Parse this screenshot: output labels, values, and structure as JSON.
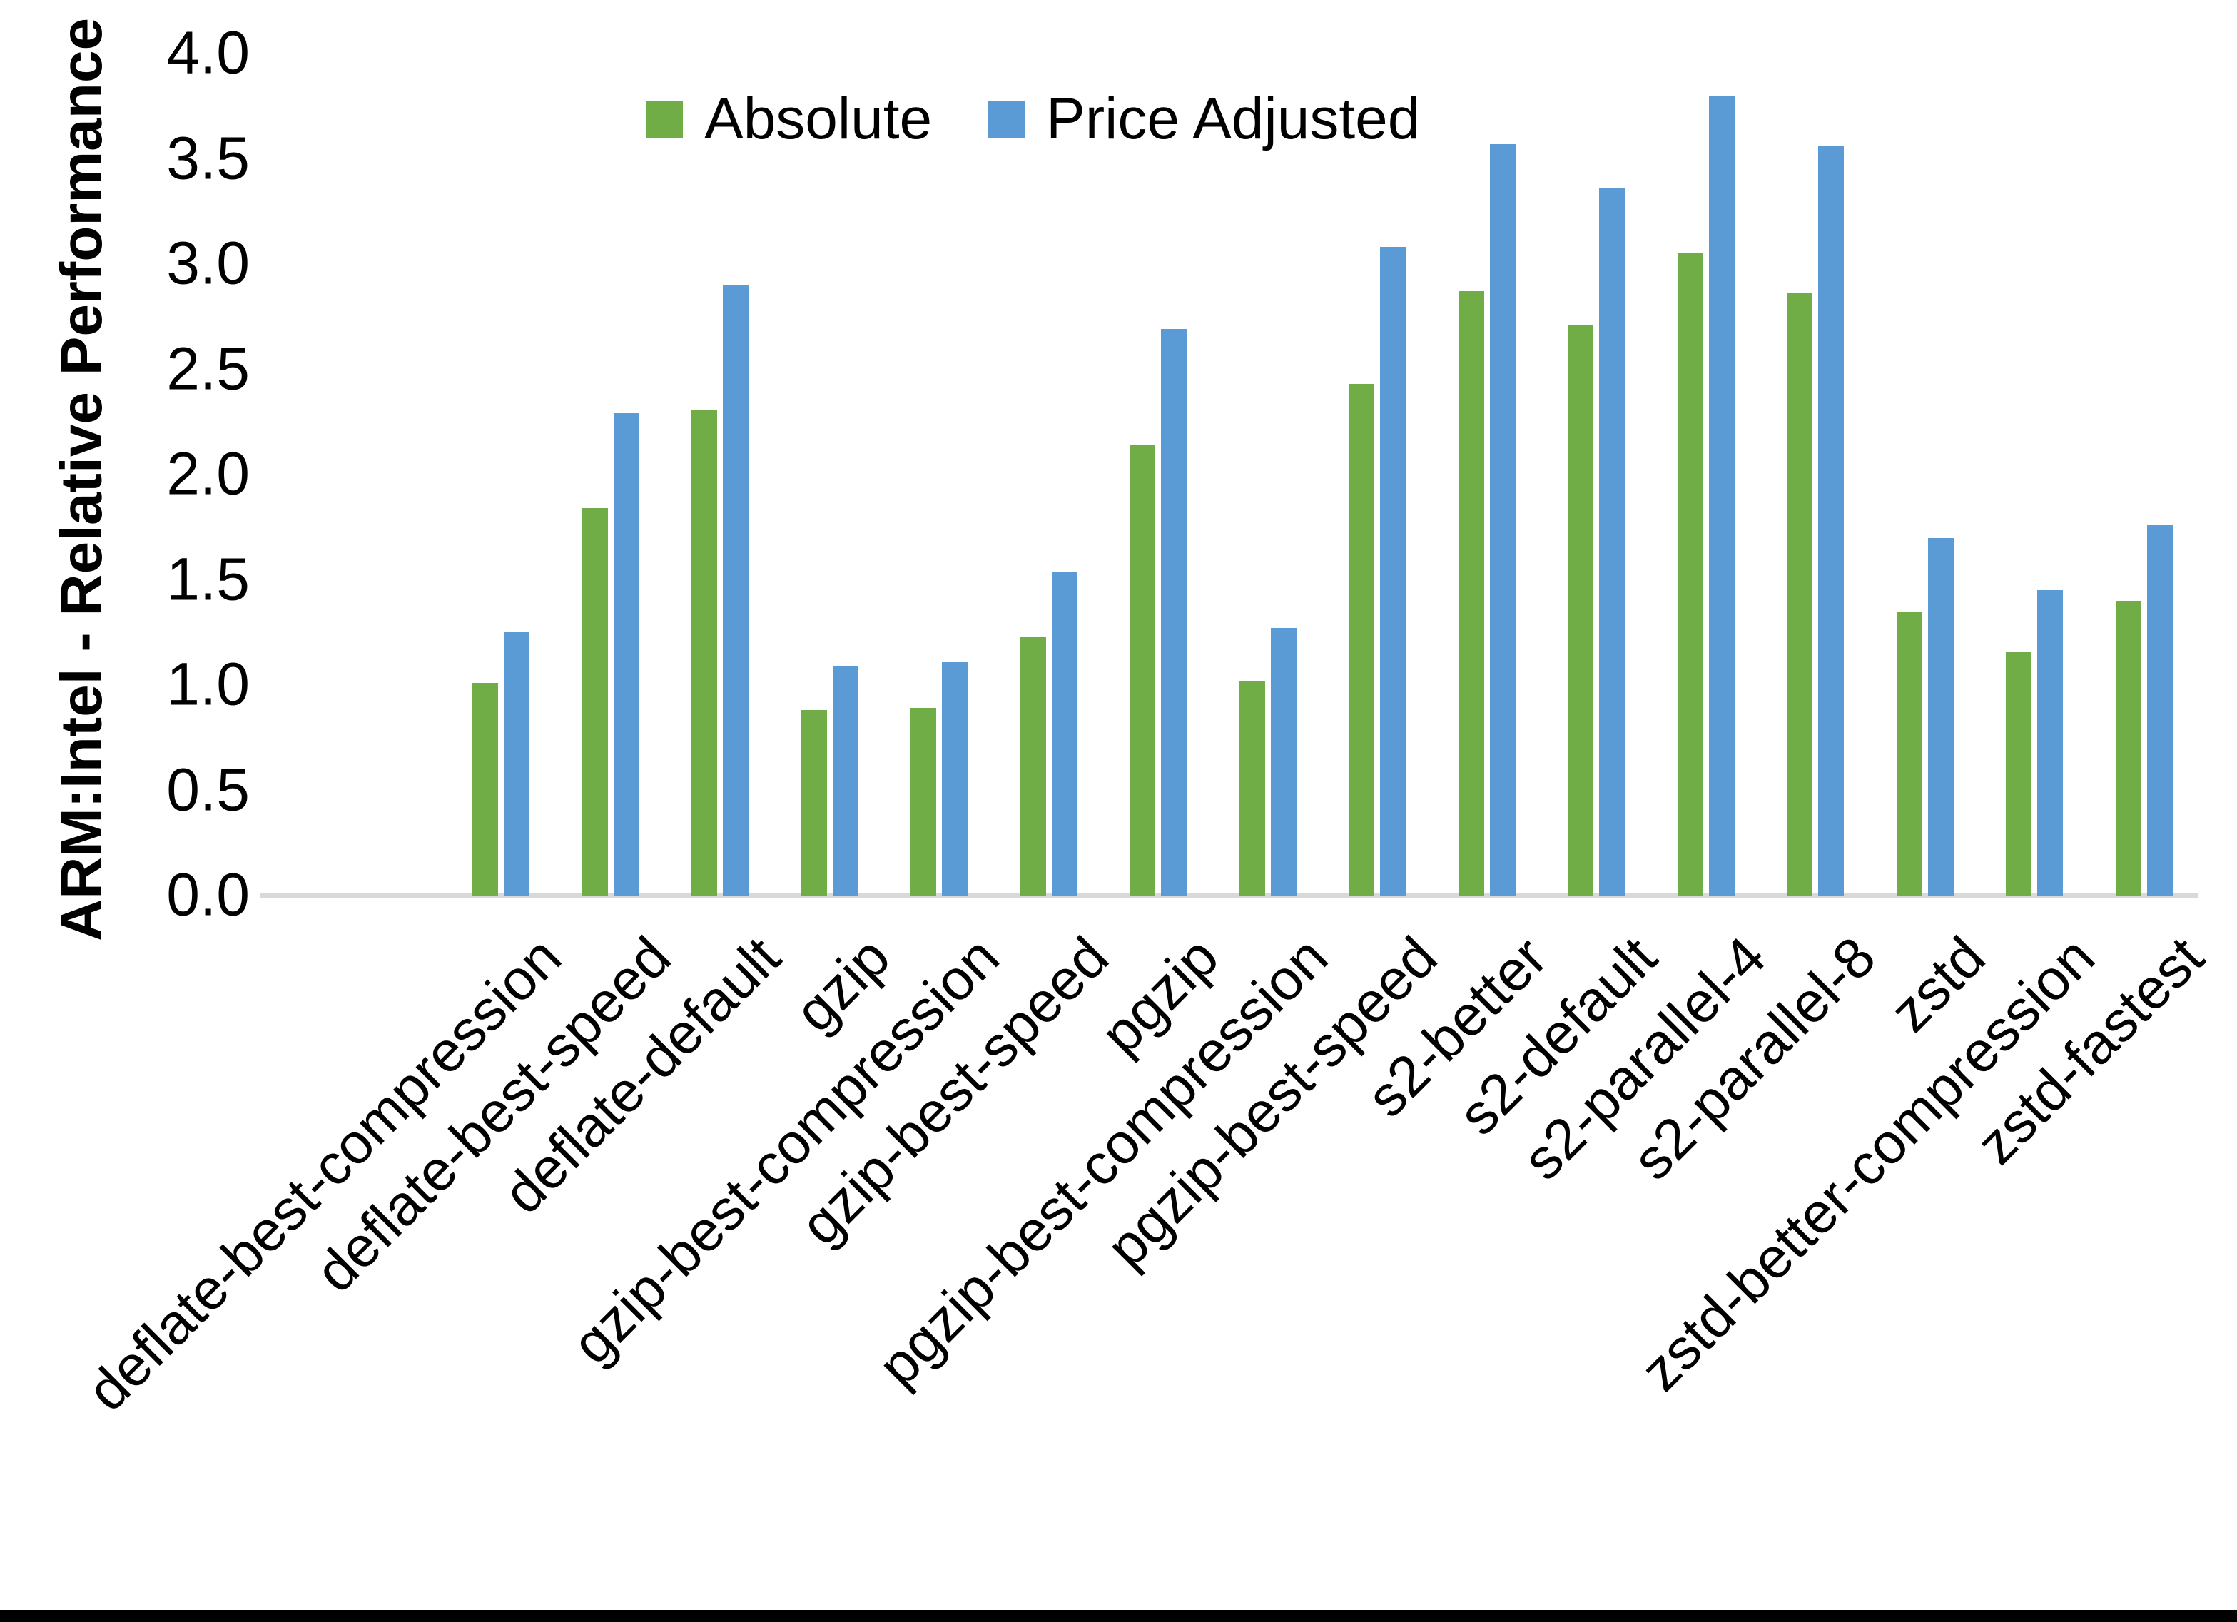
{
  "figure": {
    "y_axis_title": "ARM:Intel - Relative Performance"
  },
  "chart_data": {
    "type": "bar",
    "title": "",
    "xlabel": "",
    "ylabel": "ARM:Intel - Relative Performance",
    "ylim": [
      0.0,
      4.0
    ],
    "ytick_step": 0.5,
    "ytick_format_decimals": 1,
    "grid": false,
    "legend_position": "top-center",
    "background_color": "#ffffff",
    "axis_line_color": "#d9d9d9",
    "text_color": "#000000",
    "categories": [
      "deflate-best-compression",
      "deflate-best-speed",
      "deflate-default",
      "gzip",
      "gzip-best-compression",
      "gzip-best-speed",
      "pgzip",
      "pgzip-best-compression",
      "pgzip-best-speed",
      "s2-better",
      "s2-default",
      "s2-parallel-4",
      "s2-parallel-8",
      "zstd",
      "zstd-better-compression",
      "zstd-fastest"
    ],
    "series": [
      {
        "name": "Absolute",
        "color": "#70ad47",
        "values": [
          1.01,
          1.84,
          2.31,
          0.88,
          0.89,
          1.23,
          2.14,
          1.02,
          2.43,
          2.87,
          2.71,
          3.05,
          2.86,
          1.35,
          1.16,
          1.4
        ]
      },
      {
        "name": "Price Adjusted",
        "color": "#5b9bd5",
        "values": [
          1.25,
          2.29,
          2.9,
          1.09,
          1.11,
          1.54,
          2.69,
          1.27,
          3.08,
          3.57,
          3.36,
          3.8,
          3.56,
          1.7,
          1.45,
          1.76
        ]
      }
    ]
  }
}
